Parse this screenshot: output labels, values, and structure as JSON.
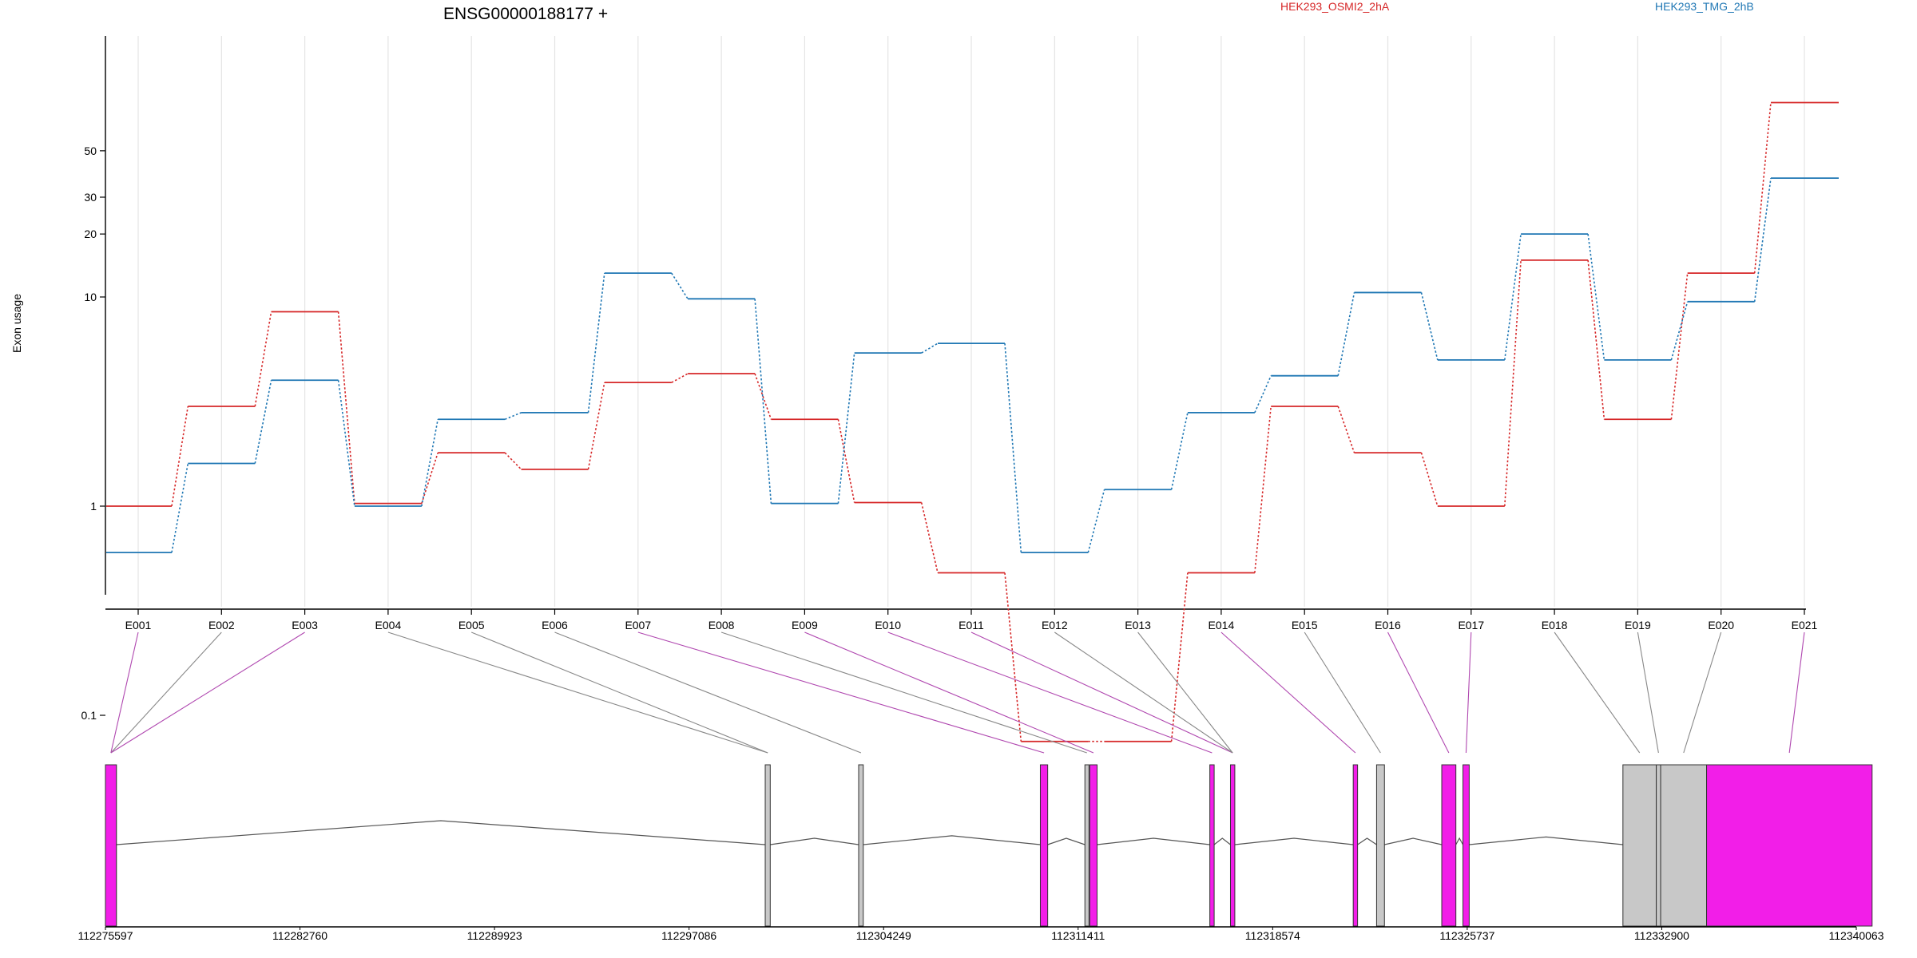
{
  "chart_data": {
    "type": "line",
    "title": "ENSG00000188177 +",
    "ylabel": "Exon usage",
    "xlabel": "",
    "y_scale": "log",
    "ylim": [
      0.08,
      100
    ],
    "yticks": [
      0.1,
      1,
      10,
      20,
      30,
      50
    ],
    "ytick_labels": [
      "0.1",
      "1",
      "10",
      "20",
      "30",
      "50"
    ],
    "grid": "vertical",
    "legend_placement": "top",
    "categories": [
      "E001",
      "E002",
      "E003",
      "E004",
      "E005",
      "E006",
      "E007",
      "E008",
      "E009",
      "E010",
      "E011",
      "E012",
      "E013",
      "E014",
      "E015",
      "E016",
      "E017",
      "E018",
      "E019",
      "E020",
      "E021"
    ],
    "series": [
      {
        "name": "HEK293_OSMI2_2hA",
        "color": "#d62728",
        "values": [
          1.0,
          3.0,
          8.5,
          1.03,
          1.8,
          1.5,
          3.9,
          4.3,
          2.6,
          1.04,
          0.48,
          0.075,
          0.075,
          0.48,
          3.0,
          1.8,
          1.0,
          15.0,
          2.6,
          13.0,
          85.0
        ]
      },
      {
        "name": "HEK293_TMG_2hB",
        "color": "#1f77b4",
        "values": [
          0.6,
          1.6,
          4.0,
          1.0,
          2.6,
          2.8,
          13.0,
          9.8,
          1.03,
          5.4,
          6.0,
          0.6,
          1.2,
          2.8,
          4.2,
          10.5,
          5.0,
          20.0,
          5.0,
          9.5,
          37.0
        ]
      }
    ],
    "gene_model": {
      "genomic_tick_labels": [
        "112275597",
        "112282760",
        "112289923",
        "112297086",
        "112304249",
        "112311411",
        "112318574",
        "112325737",
        "112332900",
        "112340063"
      ],
      "genomic_ticks": [
        112275597,
        112282760,
        112289923,
        112297086,
        112304249,
        112311411,
        112318574,
        112325737,
        112332900,
        112340063
      ],
      "genomic_range": [
        112275597,
        112340063
      ],
      "significant_color": "#f21ee8",
      "normal_color": "#c8c8c8",
      "exons": [
        {
          "id": "E001",
          "start": 112275597,
          "end": 112276000,
          "significant": true
        },
        {
          "id": "E002",
          "start": 112275597,
          "end": 112276000,
          "significant": false
        },
        {
          "id": "E003",
          "start": 112275597,
          "end": 112276000,
          "significant": true
        },
        {
          "id": "E004",
          "start": 112299890,
          "end": 112300075,
          "significant": false
        },
        {
          "id": "E005",
          "start": 112299890,
          "end": 112300075,
          "significant": false
        },
        {
          "id": "E006",
          "start": 112303330,
          "end": 112303500,
          "significant": false
        },
        {
          "id": "E007",
          "start": 112310020,
          "end": 112310290,
          "significant": true
        },
        {
          "id": "E008",
          "start": 112311660,
          "end": 112311810,
          "significant": false
        },
        {
          "id": "E009",
          "start": 112311840,
          "end": 112312110,
          "significant": true
        },
        {
          "id": "E010",
          "start": 112316260,
          "end": 112316420,
          "significant": true
        },
        {
          "id": "E011",
          "start": 112317020,
          "end": 112317180,
          "significant": true
        },
        {
          "id": "E012",
          "start": 112317020,
          "end": 112317180,
          "significant": false
        },
        {
          "id": "E013",
          "start": 112317020,
          "end": 112317180,
          "significant": false
        },
        {
          "id": "E014",
          "start": 112321540,
          "end": 112321700,
          "significant": true
        },
        {
          "id": "E015",
          "start": 112322400,
          "end": 112322690,
          "significant": false
        },
        {
          "id": "E016",
          "start": 112324800,
          "end": 112325320,
          "significant": true
        },
        {
          "id": "E017",
          "start": 112325580,
          "end": 112325810,
          "significant": true
        },
        {
          "id": "E018",
          "start": 112331470,
          "end": 112332700,
          "significant": false
        },
        {
          "id": "E019",
          "start": 112332700,
          "end": 112332860,
          "significant": false
        },
        {
          "id": "E020",
          "start": 112332860,
          "end": 112334550,
          "significant": false
        },
        {
          "id": "E021",
          "start": 112334550,
          "end": 112340645,
          "significant": true
        }
      ]
    }
  }
}
